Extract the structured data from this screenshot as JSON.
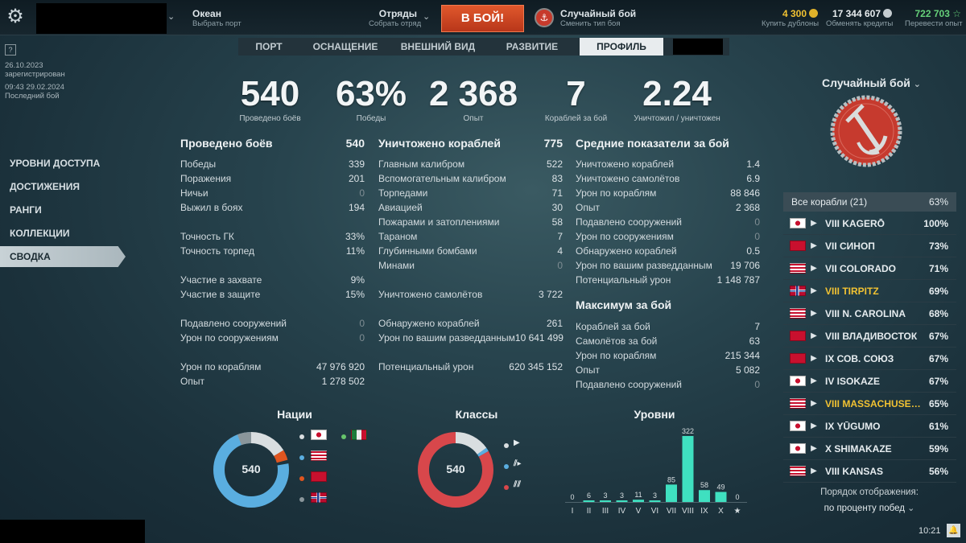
{
  "topbar": {
    "port_name": "Океан",
    "port_sub": "Выбрать порт",
    "squad_label": "Отряды",
    "squad_sub": "Собрать отряд",
    "battle_button": "В БОЙ!",
    "mode_label": "Случайный бой",
    "mode_sub": "Сменить тип боя",
    "doubloons": "4 300",
    "doubloons_sub": "Купить дублоны",
    "credits": "17 344 607",
    "credits_sub": "Обменять кредиты",
    "free_xp": "722 703",
    "free_xp_sub": "Перевести опыт"
  },
  "tabs": [
    {
      "label": "ПОРТ"
    },
    {
      "label": "ОСНАЩЕНИЕ"
    },
    {
      "label": "ВНЕШНИЙ ВИД"
    },
    {
      "label": "РАЗВИТИЕ"
    },
    {
      "label": "ПРОФИЛЬ"
    }
  ],
  "left": {
    "reg_date": "26.10.2023",
    "reg_label": "зарегистрирован",
    "last_date": "09:43  29.02.2024",
    "last_label": "Последний бой",
    "menu": [
      "УРОВНИ ДОСТУПА",
      "ДОСТИЖЕНИЯ",
      "РАНГИ",
      "КОЛЛЕКЦИИ",
      "СВОДКА"
    ]
  },
  "big_stats": [
    {
      "value": "540",
      "label": "Проведено боёв"
    },
    {
      "value": "63%",
      "label": "Победы"
    },
    {
      "value": "2 368",
      "label": "Опыт"
    },
    {
      "value": "7",
      "label": "Кораблей за бой"
    },
    {
      "value": "2.24",
      "label": "Уничтожил / уничтожен"
    }
  ],
  "col1": {
    "title": "Проведено боёв",
    "title_val": "540",
    "groups": [
      [
        [
          "Победы",
          "339"
        ],
        [
          "Поражения",
          "201"
        ],
        [
          "Ничьи",
          "0"
        ],
        [
          "Выжил в боях",
          "194"
        ]
      ],
      [
        [
          "Точность ГК",
          "33%"
        ],
        [
          "Точность торпед",
          "11%"
        ]
      ],
      [
        [
          "Участие в захвате",
          "9%"
        ],
        [
          "Участие в защите",
          "15%"
        ]
      ],
      [
        [
          "Подавлено сооружений",
          "0"
        ],
        [
          "Урон по сооружениям",
          "0"
        ]
      ],
      [
        [
          "Урон по кораблям",
          "47 976 920"
        ],
        [
          "Опыт",
          "1 278 502"
        ]
      ]
    ]
  },
  "col2": {
    "title": "Уничтожено кораблей",
    "title_val": "775",
    "groups": [
      [
        [
          "Главным калибром",
          "522"
        ],
        [
          "Вспомогательным калибром",
          "83"
        ],
        [
          "Торпедами",
          "71"
        ],
        [
          "Авиацией",
          "30"
        ],
        [
          "Пожарами и затоплениями",
          "58"
        ],
        [
          "Тараном",
          "7"
        ],
        [
          "Глубинными бомбами",
          "4"
        ],
        [
          "Минами",
          "0"
        ]
      ],
      [
        [
          "Уничтожено самолётов",
          "3 722"
        ]
      ],
      [
        [
          "Обнаружено кораблей",
          "261"
        ],
        [
          "Урон по вашим разведданным",
          "10 641 499"
        ]
      ],
      [
        [
          "Потенциальный урон",
          "620 345 152"
        ]
      ]
    ]
  },
  "col3": {
    "title": "Средние показатели за бой",
    "rows": [
      [
        "Уничтожено кораблей",
        "1.4"
      ],
      [
        "Уничтожено самолётов",
        "6.9"
      ],
      [
        "Урон по кораблям",
        "88 846"
      ],
      [
        "Опыт",
        "2 368"
      ],
      [
        "Подавлено сооружений",
        "0"
      ],
      [
        "Урон по сооружениям",
        "0"
      ],
      [
        "Обнаружено кораблей",
        "0.5"
      ],
      [
        "Урон по вашим разведданным",
        "19 706"
      ],
      [
        "Потенциальный урон",
        "1 148 787"
      ]
    ],
    "max_title": "Максимум за бой",
    "max_rows": [
      [
        "Кораблей за бой",
        "7"
      ],
      [
        "Самолётов за бой",
        "63"
      ],
      [
        "Урон по кораблям",
        "215 344"
      ],
      [
        "Опыт",
        "5 082"
      ],
      [
        "Подавлено сооружений",
        "0"
      ]
    ]
  },
  "nations": {
    "title": "Нации",
    "total": "540"
  },
  "classes": {
    "title": "Классы",
    "total": "540"
  },
  "chart_data": {
    "type": "bar",
    "title": "Уровни",
    "categories": [
      "I",
      "II",
      "III",
      "IV",
      "V",
      "VI",
      "VII",
      "VIII",
      "IX",
      "X",
      "★"
    ],
    "values": [
      0,
      6,
      3,
      3,
      11,
      3,
      85,
      322,
      58,
      49,
      0
    ],
    "ylim": [
      0,
      322
    ]
  },
  "right": {
    "mode_title": "Случайный бой",
    "all_ships": "Все корабли (21)",
    "all_pct": "63%",
    "ships": [
      {
        "nation": "japan",
        "name": "VIII KAGERŌ",
        "pct": "100%",
        "gold": false
      },
      {
        "nation": "ussr",
        "name": "VII СИНОП",
        "pct": "73%",
        "gold": false
      },
      {
        "nation": "usa",
        "name": "VII COLORADO",
        "pct": "71%",
        "gold": false
      },
      {
        "nation": "norway",
        "name": "VIII TIRPITZ",
        "pct": "69%",
        "gold": true
      },
      {
        "nation": "usa",
        "name": "VIII N. CAROLINA",
        "pct": "68%",
        "gold": false
      },
      {
        "nation": "ussr",
        "name": "VIII ВЛАДИВОСТОК",
        "pct": "67%",
        "gold": false
      },
      {
        "nation": "ussr",
        "name": "IX СОВ. СОЮЗ",
        "pct": "67%",
        "gold": false
      },
      {
        "nation": "japan",
        "name": "IV ISOKAZE",
        "pct": "67%",
        "gold": false
      },
      {
        "nation": "usa",
        "name": "VIII MASSACHUSETT...",
        "pct": "65%",
        "gold": true
      },
      {
        "nation": "japan",
        "name": "IX YŪGUMO",
        "pct": "61%",
        "gold": false
      },
      {
        "nation": "japan",
        "name": "X SHIMAKAZE",
        "pct": "59%",
        "gold": false
      },
      {
        "nation": "usa",
        "name": "VIII KANSAS",
        "pct": "56%",
        "gold": false
      }
    ],
    "sort_label": "Порядок отображения:",
    "sort_value": "по проценту побед"
  },
  "clock": "10:21"
}
